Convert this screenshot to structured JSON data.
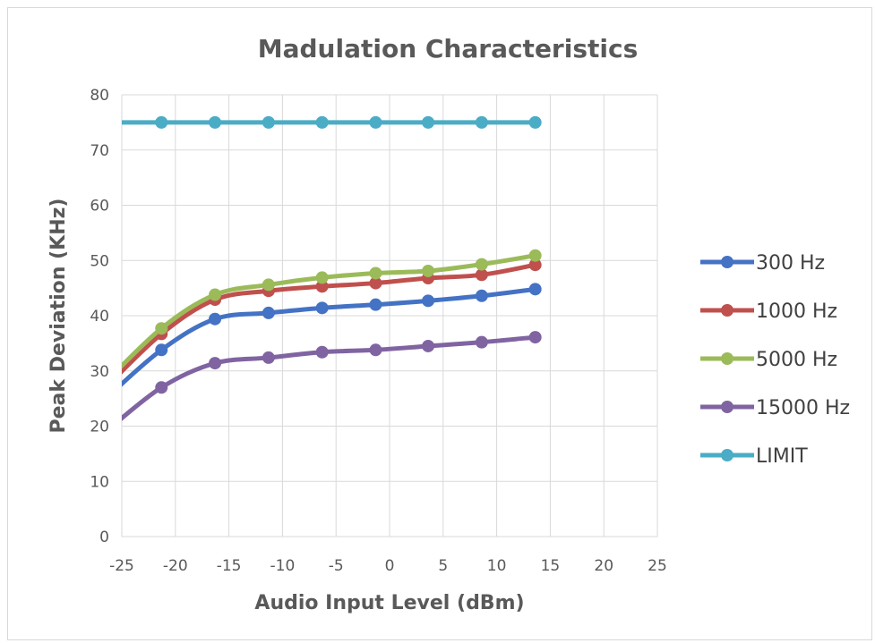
{
  "chart_data": {
    "type": "scatter",
    "title": "Madulation Characteristics",
    "xlabel": "Audio Input Level (dBm)",
    "ylabel": "Peak Deviation (KHz)",
    "xlim": [
      -25,
      25
    ],
    "ylim": [
      0,
      80
    ],
    "xticks": [
      -25,
      -20,
      -15,
      -10,
      -5,
      0,
      5,
      10,
      15,
      20,
      25
    ],
    "yticks": [
      0,
      10,
      20,
      30,
      40,
      50,
      60,
      70,
      80
    ],
    "xtick_labels": [
      "-25",
      "-20",
      "-15",
      "-10",
      "-5",
      "0",
      "5",
      "10",
      "15",
      "20",
      "25"
    ],
    "ytick_labels": [
      "0",
      "10",
      "20",
      "30",
      "40",
      "50",
      "60",
      "70",
      "80"
    ],
    "grid": true,
    "smooth": true,
    "legend_position": "right",
    "series": [
      {
        "name": "300 Hz",
        "color": "#4472c4",
        "x": [
          -26.5,
          -21.3,
          -16.3,
          -11.3,
          -6.3,
          -1.3,
          3.6,
          8.6,
          13.6
        ],
        "y": [
          25.0,
          33.8,
          39.4,
          40.5,
          41.4,
          42.0,
          42.7,
          43.6,
          44.8
        ]
      },
      {
        "name": "1000 Hz",
        "color": "#c0504d",
        "x": [
          -26.5,
          -21.3,
          -16.3,
          -11.3,
          -6.3,
          -1.3,
          3.6,
          8.6,
          13.6
        ],
        "y": [
          27.0,
          36.7,
          42.9,
          44.5,
          45.3,
          45.9,
          46.8,
          47.4,
          49.2
        ]
      },
      {
        "name": "5000 Hz",
        "color": "#9bbb59",
        "x": [
          -26.5,
          -21.3,
          -16.3,
          -11.3,
          -6.3,
          -1.3,
          3.6,
          8.6,
          13.6
        ],
        "y": [
          28.0,
          37.7,
          43.8,
          45.6,
          46.9,
          47.7,
          48.1,
          49.3,
          50.9
        ]
      },
      {
        "name": "15000 Hz",
        "color": "#8064a2",
        "x": [
          -26.5,
          -21.3,
          -16.3,
          -11.3,
          -6.3,
          -1.3,
          3.6,
          8.6,
          13.6
        ],
        "y": [
          19.0,
          27.0,
          31.4,
          32.4,
          33.4,
          33.8,
          34.5,
          35.2,
          36.1
        ]
      },
      {
        "name": "LIMIT",
        "color": "#4bacc6",
        "x": [
          -26.5,
          -21.3,
          -16.3,
          -11.3,
          -6.3,
          -1.3,
          3.6,
          8.6,
          13.6
        ],
        "y": [
          75,
          75,
          75,
          75,
          75,
          75,
          75,
          75,
          75
        ]
      }
    ]
  }
}
